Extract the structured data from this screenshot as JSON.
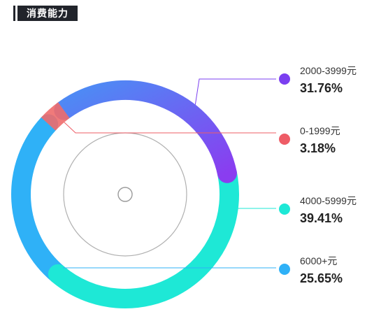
{
  "title": "消费能力",
  "chart_data": {
    "type": "pie",
    "style": "donut",
    "slices": [
      {
        "label": "0-1999元",
        "percent": "3.18%",
        "value": 3.18,
        "color": "#ee6b6b",
        "gradient_to": "#ee6b6b"
      },
      {
        "label": "2000-3999元",
        "percent": "31.76%",
        "value": 31.76,
        "color": "#4b8ef5",
        "gradient_to": "#8a3df0"
      },
      {
        "label": "4000-5999元",
        "percent": "39.41%",
        "value": 39.41,
        "color": "#1ee8d6",
        "gradient_to": "#1ee8d6"
      },
      {
        "label": "6000+元",
        "percent": "25.65%",
        "value": 25.65,
        "color": "#2fb1f7",
        "gradient_to": "#2fb1f7"
      }
    ],
    "legend_order": [
      1,
      0,
      2,
      3
    ],
    "dot_colors": [
      "#7b3ff0",
      "#ee5c66",
      "#1ee8d6",
      "#2fb1f7"
    ]
  }
}
